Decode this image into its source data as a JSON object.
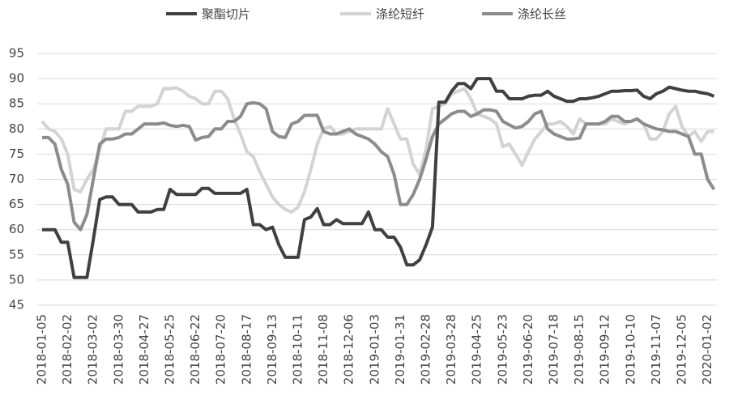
{
  "chart_data": {
    "type": "line",
    "categories": [
      "2018-01-05",
      null,
      null,
      null,
      "2018-02-02",
      null,
      null,
      null,
      "2018-03-02",
      null,
      null,
      null,
      "2018-03-30",
      null,
      null,
      null,
      "2018-04-27",
      null,
      null,
      null,
      "2018-05-25",
      null,
      null,
      null,
      "2018-06-22",
      null,
      null,
      null,
      "2018-07-20",
      null,
      null,
      null,
      "2018-08-17",
      null,
      null,
      null,
      "2018-09-13",
      null,
      null,
      null,
      "2018-10-11",
      null,
      null,
      null,
      "2018-11-08",
      null,
      null,
      null,
      "2018-12-06",
      null,
      null,
      null,
      "2019-01-03",
      null,
      null,
      null,
      "2019-01-31",
      null,
      null,
      null,
      "2019-02-28",
      null,
      null,
      null,
      "2019-03-28",
      null,
      null,
      null,
      "2019-04-25",
      null,
      null,
      null,
      "2019-05-23",
      null,
      null,
      null,
      "2019-06-20",
      null,
      null,
      null,
      "2019-07-18",
      null,
      null,
      null,
      "2019-08-15",
      null,
      null,
      null,
      "2019-09-12",
      null,
      null,
      null,
      "2019-10-10",
      null,
      null,
      null,
      "2019-11-07",
      null,
      null,
      null,
      "2019-12-05",
      null,
      null,
      null,
      "2020-01-02",
      null
    ],
    "series": [
      {
        "name": "聚酯切片",
        "color": "#404040",
        "values": [
          60,
          60,
          60,
          57.5,
          57.5,
          50.5,
          50.5,
          50.5,
          58,
          66,
          66.5,
          66.5,
          65,
          65,
          65,
          63.5,
          63.5,
          63.5,
          64,
          64,
          68,
          67,
          67,
          67,
          67,
          68.2,
          68.2,
          67.2,
          67.2,
          67.2,
          67.2,
          67.2,
          68,
          61,
          61,
          60,
          60.5,
          57,
          54.5,
          54.5,
          54.5,
          62,
          62.5,
          64.2,
          61,
          61,
          62,
          61.2,
          61.2,
          61.2,
          61.2,
          63.5,
          60,
          60,
          58.5,
          58.5,
          56.5,
          53,
          53,
          54,
          57,
          60.5,
          85.3,
          85.3,
          87.5,
          89,
          89,
          88,
          90,
          90,
          90,
          87.5,
          87.5,
          86,
          86,
          86,
          86.5,
          86.7,
          86.7,
          87.5,
          86.5,
          86,
          85.5,
          85.5,
          86,
          86,
          86.2,
          86.5,
          87,
          87.5,
          87.5,
          87.6,
          87.6,
          87.7,
          86.5,
          86,
          87,
          87.5,
          88.3,
          88,
          87.7,
          87.5,
          87.5,
          87.2,
          87,
          86.5
        ]
      },
      {
        "name": "涤纶短纤",
        "color": "#d3d3d3",
        "values": [
          81.5,
          80,
          79.5,
          78,
          75,
          68,
          67.5,
          70,
          72,
          76,
          80,
          80,
          80,
          83.5,
          83.5,
          84.5,
          84.5,
          84.5,
          85,
          88,
          88,
          88.2,
          87.5,
          86.5,
          86,
          85,
          85,
          87.5,
          87.5,
          86,
          82,
          79,
          75.5,
          74.5,
          71.5,
          69,
          66.5,
          65,
          64,
          63.5,
          64.5,
          67.5,
          72,
          77,
          80,
          80.5,
          79,
          79,
          79.5,
          80,
          80,
          80,
          80,
          80,
          84,
          81,
          78,
          78,
          73,
          71,
          76,
          84,
          84.5,
          85,
          87,
          87.5,
          88,
          86,
          83,
          82.5,
          82,
          81,
          76.5,
          77,
          75,
          72.8,
          75.5,
          78,
          79.5,
          81,
          81,
          81.5,
          80.5,
          79,
          82,
          81,
          81,
          81,
          81,
          82,
          81.5,
          81,
          81.5,
          82,
          81,
          78,
          78,
          79.5,
          83,
          84.5,
          80.5,
          78.5,
          79.5,
          77.5,
          79.5,
          79.5
        ]
      },
      {
        "name": "涤纶长丝",
        "color": "#8c8c8c",
        "values": [
          78.3,
          78.3,
          77,
          72,
          69,
          61.5,
          60,
          63,
          70,
          77,
          78,
          78,
          78.3,
          79,
          79,
          80,
          81,
          81,
          81,
          81.2,
          80.7,
          80.5,
          80.7,
          80.5,
          77.8,
          78.3,
          78.5,
          80,
          80,
          81.5,
          81.5,
          82.5,
          85,
          85.2,
          85,
          84,
          79.5,
          78.5,
          78.3,
          81,
          81.5,
          82.7,
          82.7,
          82.7,
          79.5,
          79,
          79,
          79.5,
          80,
          79,
          78.5,
          78,
          77,
          75.5,
          74.5,
          71,
          65,
          65,
          67,
          70,
          74,
          78.5,
          81,
          82,
          83,
          83.5,
          83.5,
          82.5,
          83,
          83.8,
          83.8,
          83.5,
          81.5,
          80.8,
          80.2,
          80.5,
          81.5,
          83,
          83.5,
          80,
          79,
          78.5,
          78,
          78,
          78.2,
          81,
          81,
          81,
          81.5,
          82.5,
          82.5,
          81.5,
          81.5,
          82,
          81,
          80.5,
          80,
          79.8,
          79.5,
          79.5,
          79,
          78.5,
          75,
          75,
          70,
          68
        ]
      }
    ],
    "ylim": [
      45,
      95
    ],
    "yticks": [
      45,
      50,
      55,
      60,
      65,
      70,
      75,
      80,
      85,
      90,
      95
    ],
    "grid": true,
    "legend": "top"
  }
}
